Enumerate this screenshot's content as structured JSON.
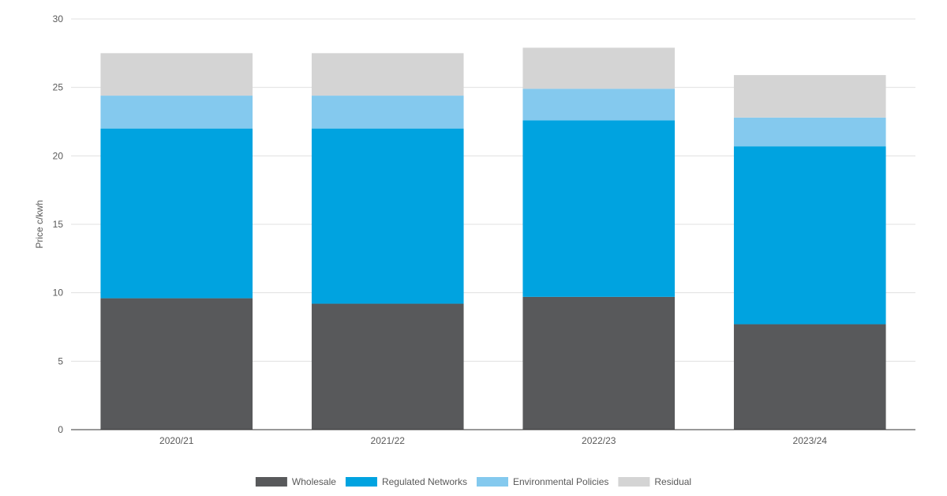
{
  "chart_data": {
    "type": "bar",
    "stacked": true,
    "title": "",
    "xlabel": "",
    "ylabel": "Price c/kwh",
    "ylim": [
      0,
      30
    ],
    "yticks": [
      0,
      5,
      10,
      15,
      20,
      25,
      30
    ],
    "grid": true,
    "legend_position": "bottom",
    "categories": [
      "2020/21",
      "2021/22",
      "2022/23",
      "2023/24"
    ],
    "series": [
      {
        "name": "Wholesale",
        "color": "#58595b",
        "values": [
          9.6,
          9.2,
          9.7,
          7.7
        ]
      },
      {
        "name": "Regulated Networks",
        "color": "#00a3e0",
        "values": [
          12.4,
          12.8,
          12.9,
          13.0
        ]
      },
      {
        "name": "Environmental Policies",
        "color": "#84c9ee",
        "values": [
          2.4,
          2.4,
          2.3,
          2.1
        ]
      },
      {
        "name": "Residual",
        "color": "#d4d4d4",
        "values": [
          3.1,
          3.1,
          3.0,
          3.1
        ]
      }
    ]
  }
}
